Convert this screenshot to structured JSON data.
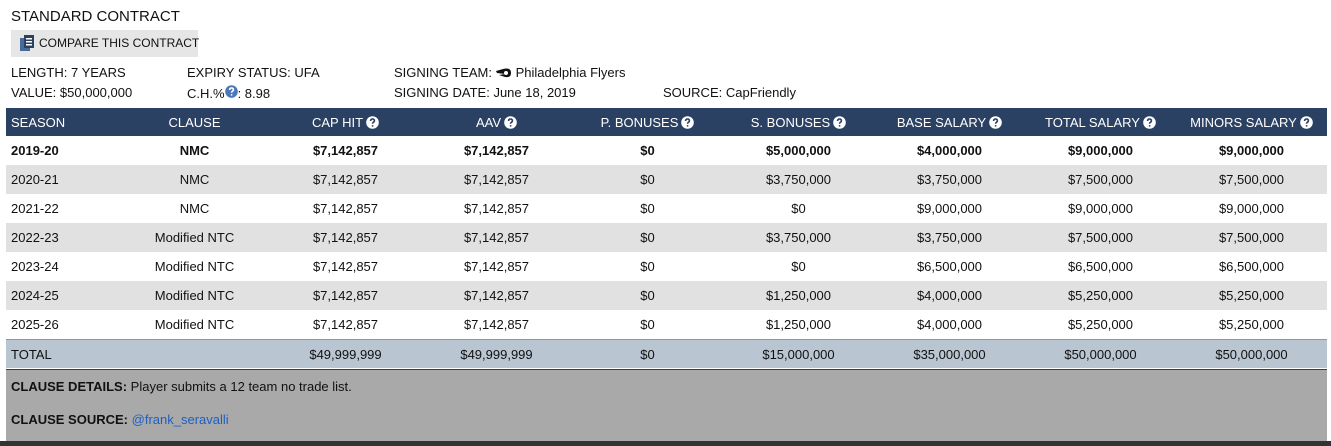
{
  "header": {
    "title": "STANDARD CONTRACT",
    "compare_button": "COMPARE THIS CONTRACT"
  },
  "info": {
    "row1": [
      {
        "label": "LENGTH:",
        "value": "7 YEARS"
      },
      {
        "label": "EXPIRY STATUS:",
        "value": "UFA"
      },
      {
        "label": "SIGNING TEAM:",
        "value": "Philadelphia Flyers"
      }
    ],
    "row2": [
      {
        "label": "VALUE:",
        "value": "$50,000,000"
      },
      {
        "label": "C.H.%",
        "value": ": 8.98"
      },
      {
        "label": "SIGNING DATE:",
        "value": "June 18, 2019"
      },
      {
        "label": "SOURCE:",
        "value": "CapFriendly"
      }
    ]
  },
  "table": {
    "columns": [
      "SEASON",
      "CLAUSE",
      "CAP HIT",
      "AAV",
      "P. BONUSES",
      "S. BONUSES",
      "BASE SALARY",
      "TOTAL SALARY",
      "MINORS SALARY"
    ],
    "rows": [
      [
        "2019-20",
        "NMC",
        "$7,142,857",
        "$7,142,857",
        "$0",
        "$5,000,000",
        "$4,000,000",
        "$9,000,000",
        "$9,000,000"
      ],
      [
        "2020-21",
        "NMC",
        "$7,142,857",
        "$7,142,857",
        "$0",
        "$3,750,000",
        "$3,750,000",
        "$7,500,000",
        "$7,500,000"
      ],
      [
        "2021-22",
        "NMC",
        "$7,142,857",
        "$7,142,857",
        "$0",
        "$0",
        "$9,000,000",
        "$9,000,000",
        "$9,000,000"
      ],
      [
        "2022-23",
        "Modified NTC",
        "$7,142,857",
        "$7,142,857",
        "$0",
        "$3,750,000",
        "$3,750,000",
        "$7,500,000",
        "$7,500,000"
      ],
      [
        "2023-24",
        "Modified NTC",
        "$7,142,857",
        "$7,142,857",
        "$0",
        "$0",
        "$6,500,000",
        "$6,500,000",
        "$6,500,000"
      ],
      [
        "2024-25",
        "Modified NTC",
        "$7,142,857",
        "$7,142,857",
        "$0",
        "$1,250,000",
        "$4,000,000",
        "$5,250,000",
        "$5,250,000"
      ],
      [
        "2025-26",
        "Modified NTC",
        "$7,142,857",
        "$7,142,857",
        "$0",
        "$1,250,000",
        "$4,000,000",
        "$5,250,000",
        "$5,250,000"
      ]
    ],
    "total": [
      "TOTAL",
      null,
      "$49,999,999",
      "$49,999,999",
      "$0",
      "$15,000,000",
      "$35,000,000",
      "$50,000,000",
      "$50,000,000"
    ]
  },
  "clause": {
    "details_label": "CLAUSE DETAILS:",
    "details": "Player submits a 12 team no trade list.",
    "source_label": "CLAUSE SOURCE:",
    "source": "@frank_seravalli"
  }
}
